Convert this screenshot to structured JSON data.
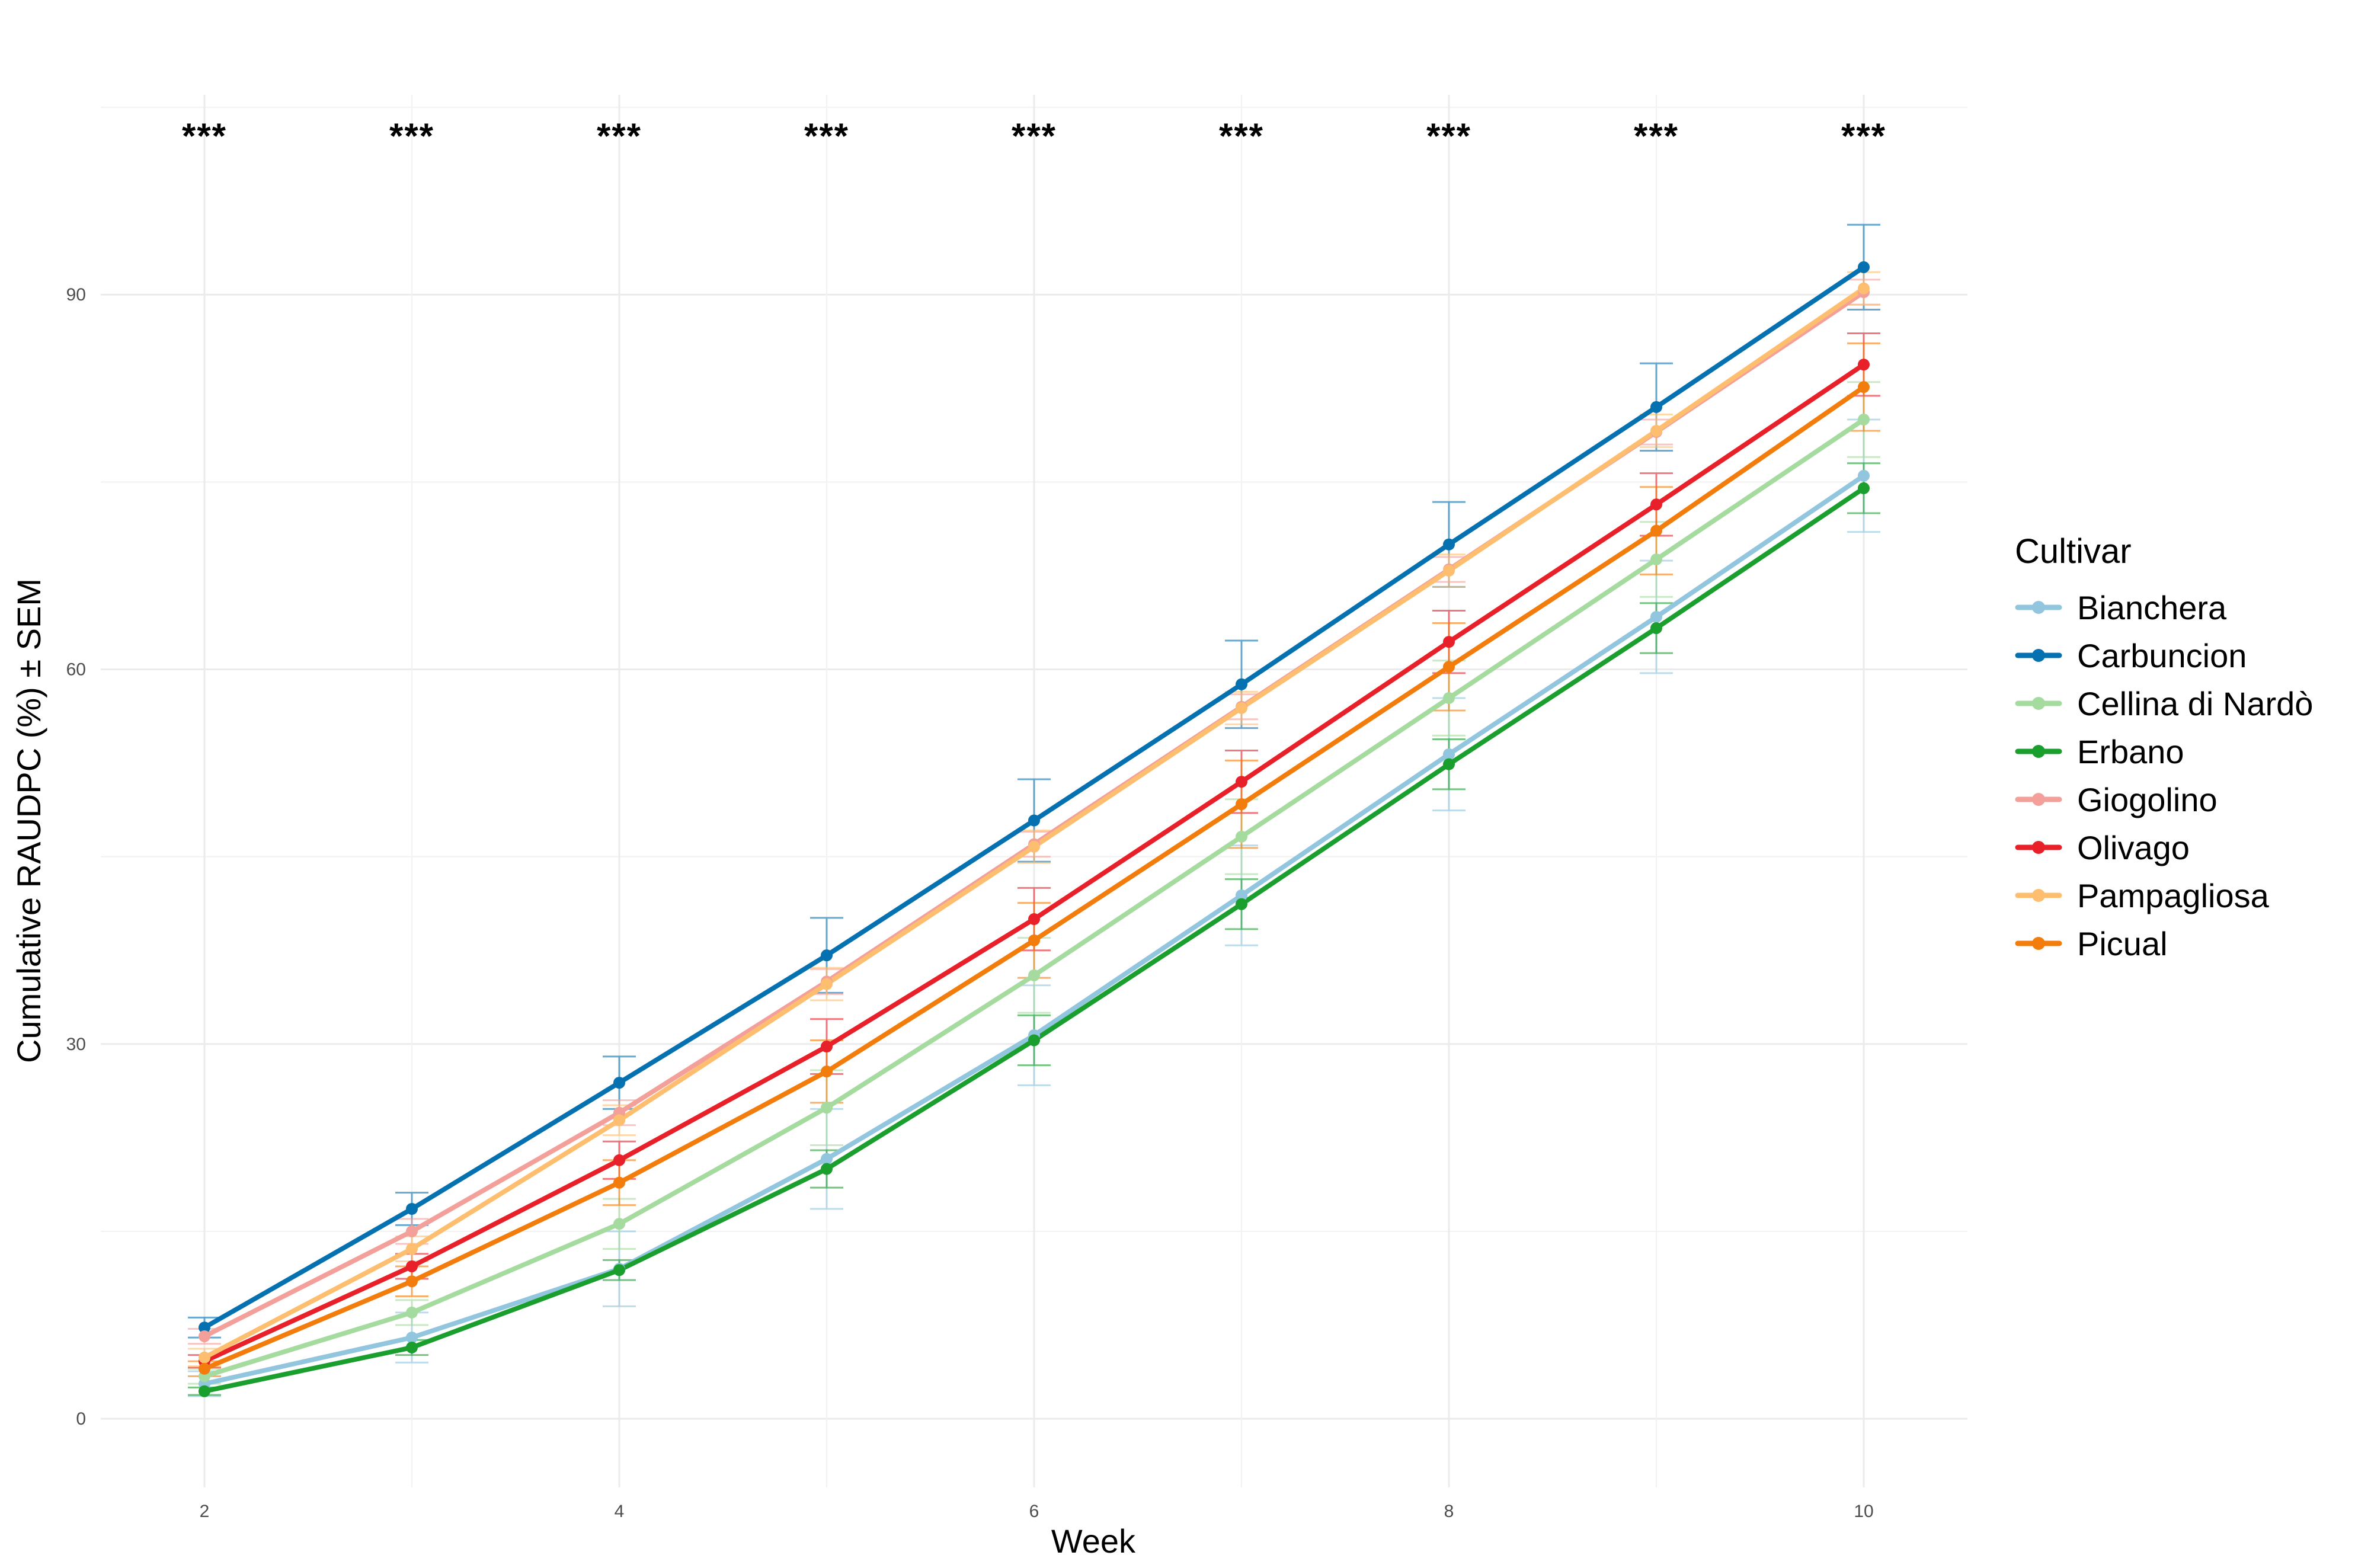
{
  "chart_data": {
    "type": "line",
    "xlabel": "Week",
    "ylabel": "Cumulative RAUDPC (%) ± SEM",
    "xlim": [
      1.5,
      10.5
    ],
    "ylim": [
      -5.5,
      106
    ],
    "x_ticks": [
      2,
      4,
      6,
      8,
      10
    ],
    "y_ticks": [
      0,
      30,
      60,
      90
    ],
    "grid": true,
    "legend": {
      "title": "Cultivar",
      "position": "right"
    },
    "x": [
      2,
      3,
      4,
      5,
      6,
      7,
      8,
      9,
      10
    ],
    "significance": [
      "***",
      "***",
      "***",
      "***",
      "***",
      "***",
      "***",
      "***",
      "***"
    ],
    "series": [
      {
        "name": "Bianchera",
        "color": "#92c5de",
        "values": [
          2.8,
          6.5,
          12.0,
          20.8,
          30.7,
          41.9,
          53.2,
          64.2,
          75.5
        ],
        "sem": [
          1.0,
          2.0,
          3.0,
          4.0,
          4.0,
          4.0,
          4.5,
          4.5,
          4.5
        ]
      },
      {
        "name": "Carbuncion",
        "color": "#0571b0",
        "values": [
          7.3,
          16.8,
          26.9,
          37.1,
          47.9,
          58.8,
          70.0,
          81.0,
          92.2
        ],
        "sem": [
          0.8,
          1.3,
          2.1,
          3.0,
          3.3,
          3.5,
          3.4,
          3.5,
          3.4
        ]
      },
      {
        "name": "Cellina di Nardò",
        "color": "#a6dba0",
        "values": [
          3.4,
          8.5,
          15.6,
          24.9,
          35.5,
          46.6,
          57.7,
          68.8,
          80.0
        ],
        "sem": [
          0.6,
          1.0,
          2.0,
          3.0,
          3.0,
          3.0,
          3.0,
          3.0,
          3.0
        ]
      },
      {
        "name": "Erbano",
        "color": "#1a9e2e",
        "values": [
          2.2,
          5.7,
          11.9,
          20.0,
          30.3,
          41.2,
          52.4,
          63.3,
          74.5
        ],
        "sem": [
          0.3,
          0.6,
          0.8,
          1.5,
          2.0,
          2.0,
          2.0,
          2.0,
          2.0
        ]
      },
      {
        "name": "Giogolino",
        "color": "#f4a09a",
        "values": [
          6.6,
          15.0,
          24.5,
          35.0,
          46.0,
          57.0,
          68.0,
          79.0,
          90.2
        ],
        "sem": [
          0.6,
          1.0,
          1.0,
          1.0,
          1.0,
          1.0,
          1.0,
          1.0,
          1.0
        ]
      },
      {
        "name": "Olivago",
        "color": "#e8202a",
        "values": [
          4.6,
          12.2,
          20.7,
          29.8,
          40.0,
          51.0,
          62.2,
          73.2,
          84.4
        ],
        "sem": [
          0.5,
          1.0,
          1.5,
          2.2,
          2.5,
          2.5,
          2.5,
          2.5,
          2.5
        ]
      },
      {
        "name": "Pampagliosa",
        "color": "#fdbf6f",
        "values": [
          4.9,
          13.6,
          23.9,
          34.8,
          45.8,
          56.9,
          67.9,
          79.1,
          90.5
        ],
        "sem": [
          0.7,
          1.0,
          1.2,
          1.3,
          1.3,
          1.3,
          1.3,
          1.3,
          1.3
        ]
      },
      {
        "name": "Picual",
        "color": "#f27d0c",
        "values": [
          4.0,
          11.0,
          18.9,
          27.8,
          38.3,
          49.2,
          60.2,
          71.1,
          82.6
        ],
        "sem": [
          0.6,
          1.2,
          1.8,
          2.5,
          3.0,
          3.5,
          3.5,
          3.5,
          3.5
        ]
      }
    ]
  }
}
